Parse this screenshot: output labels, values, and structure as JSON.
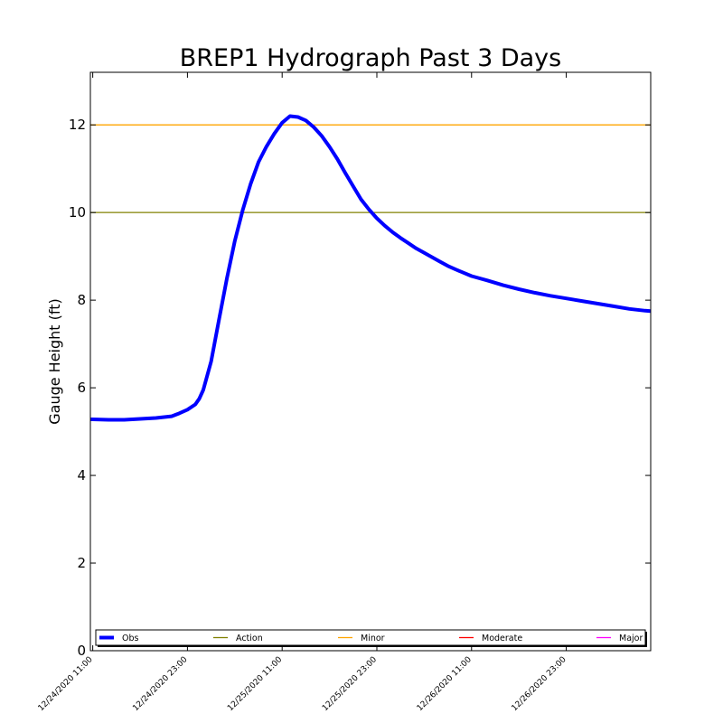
{
  "chart_data": {
    "type": "line",
    "title": "BREP1 Hydrograph Past 3 Days",
    "xlabel": "",
    "ylabel": "Gauge Height (ft)",
    "xlim": [
      -0.3,
      70.7
    ],
    "ylim": [
      0,
      13.2
    ],
    "grid": false,
    "legend_position": "bottom",
    "x_unit": "hours since 12/24/2020 11:00",
    "xticks": [
      {
        "x": 0,
        "label": "12/24/2020 11:00"
      },
      {
        "x": 12,
        "label": "12/24/2020 23:00"
      },
      {
        "x": 24,
        "label": "12/25/2020 11:00"
      },
      {
        "x": 36,
        "label": "12/25/2020 23:00"
      },
      {
        "x": 48,
        "label": "12/26/2020 11:00"
      },
      {
        "x": 60,
        "label": "12/26/2020 23:00"
      }
    ],
    "yticks": [
      0,
      2,
      4,
      6,
      8,
      10,
      12
    ],
    "series": [
      {
        "name": "Obs",
        "color": "#0000ff",
        "x": [
          -0.3,
          0,
          2,
          4,
          6,
          8,
          10,
          11,
          12,
          13,
          13.5,
          14,
          15,
          16,
          17,
          18,
          19,
          20,
          21,
          22,
          23,
          24,
          25,
          26,
          27,
          28,
          29,
          30,
          31,
          32,
          33,
          34,
          35,
          36,
          37,
          38,
          39,
          40,
          41,
          42,
          43,
          44,
          45,
          46,
          48,
          50,
          52,
          54,
          56,
          58,
          60,
          62,
          64,
          66,
          68,
          70,
          70.7
        ],
        "values": [
          5.28,
          5.28,
          5.27,
          5.27,
          5.29,
          5.31,
          5.35,
          5.42,
          5.5,
          5.62,
          5.75,
          5.95,
          6.6,
          7.55,
          8.5,
          9.35,
          10.05,
          10.65,
          11.15,
          11.5,
          11.8,
          12.05,
          12.2,
          12.18,
          12.1,
          11.95,
          11.75,
          11.5,
          11.22,
          10.9,
          10.6,
          10.3,
          10.07,
          9.87,
          9.7,
          9.55,
          9.42,
          9.3,
          9.18,
          9.08,
          8.98,
          8.88,
          8.78,
          8.7,
          8.55,
          8.45,
          8.34,
          8.25,
          8.17,
          8.1,
          8.04,
          7.98,
          7.92,
          7.86,
          7.8,
          7.76,
          7.75
        ]
      }
    ],
    "thresholds": [
      {
        "name": "Action",
        "value": 10,
        "color": "#808000"
      },
      {
        "name": "Minor",
        "value": 12,
        "color": "#ffa500"
      },
      {
        "name": "Moderate",
        "value": null,
        "color": "#ff0000"
      },
      {
        "name": "Major",
        "value": null,
        "color": "#ff00ff"
      }
    ],
    "legend": [
      {
        "label": "Obs",
        "color": "#0000ff"
      },
      {
        "label": "Action",
        "color": "#808000"
      },
      {
        "label": "Minor",
        "color": "#ffa500"
      },
      {
        "label": "Moderate",
        "color": "#ff0000"
      },
      {
        "label": "Major",
        "color": "#ff00ff"
      }
    ]
  }
}
